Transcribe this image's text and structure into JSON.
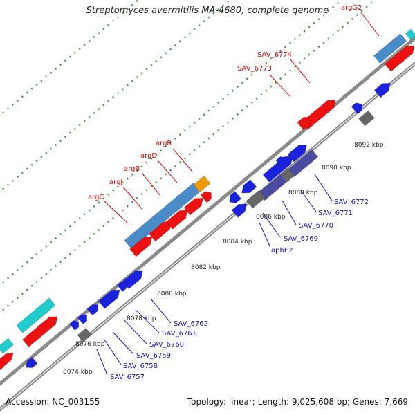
{
  "title": "Streptomyces avermitilis MA-4680, complete genome",
  "footer": {
    "accession": "Accession: NC_003155",
    "summary": "Topology: linear; Length: 9,025,608 bp; Genes: 7,669"
  },
  "colors": {
    "red": "#ee1111",
    "blue": "#1a22dd",
    "steel": "#4a8cc8",
    "cyan": "#22cccc",
    "purple": "#4a4aa0",
    "gray": "#666666",
    "orange": "#ee9900",
    "track": "#8a8a8a",
    "dots": "#3a9a3a",
    "label_red": "#dd0000",
    "label_blue": "#1111cc"
  },
  "kbp_ticks": [
    "8074 kbp",
    "8076 kbp",
    "8078 kbp",
    "8080 kbp",
    "8082 kbp",
    "8084 kbp",
    "8086 kbp",
    "8088 kbp",
    "8090 kbp",
    "8092 kbp"
  ],
  "top_labels": [
    "argC",
    "argJ",
    "argB",
    "argD",
    "argR",
    "SAV_6773",
    "SAV_6774",
    "argG2"
  ],
  "bottom_labels": [
    "SAV_6757",
    "SAV_6758",
    "SAV_6759",
    "SAV_6760",
    "SAV_6761",
    "SAV_6762",
    "apbE2",
    "SAV_6769",
    "SAV_6770",
    "SAV_6771",
    "SAV_6772"
  ]
}
